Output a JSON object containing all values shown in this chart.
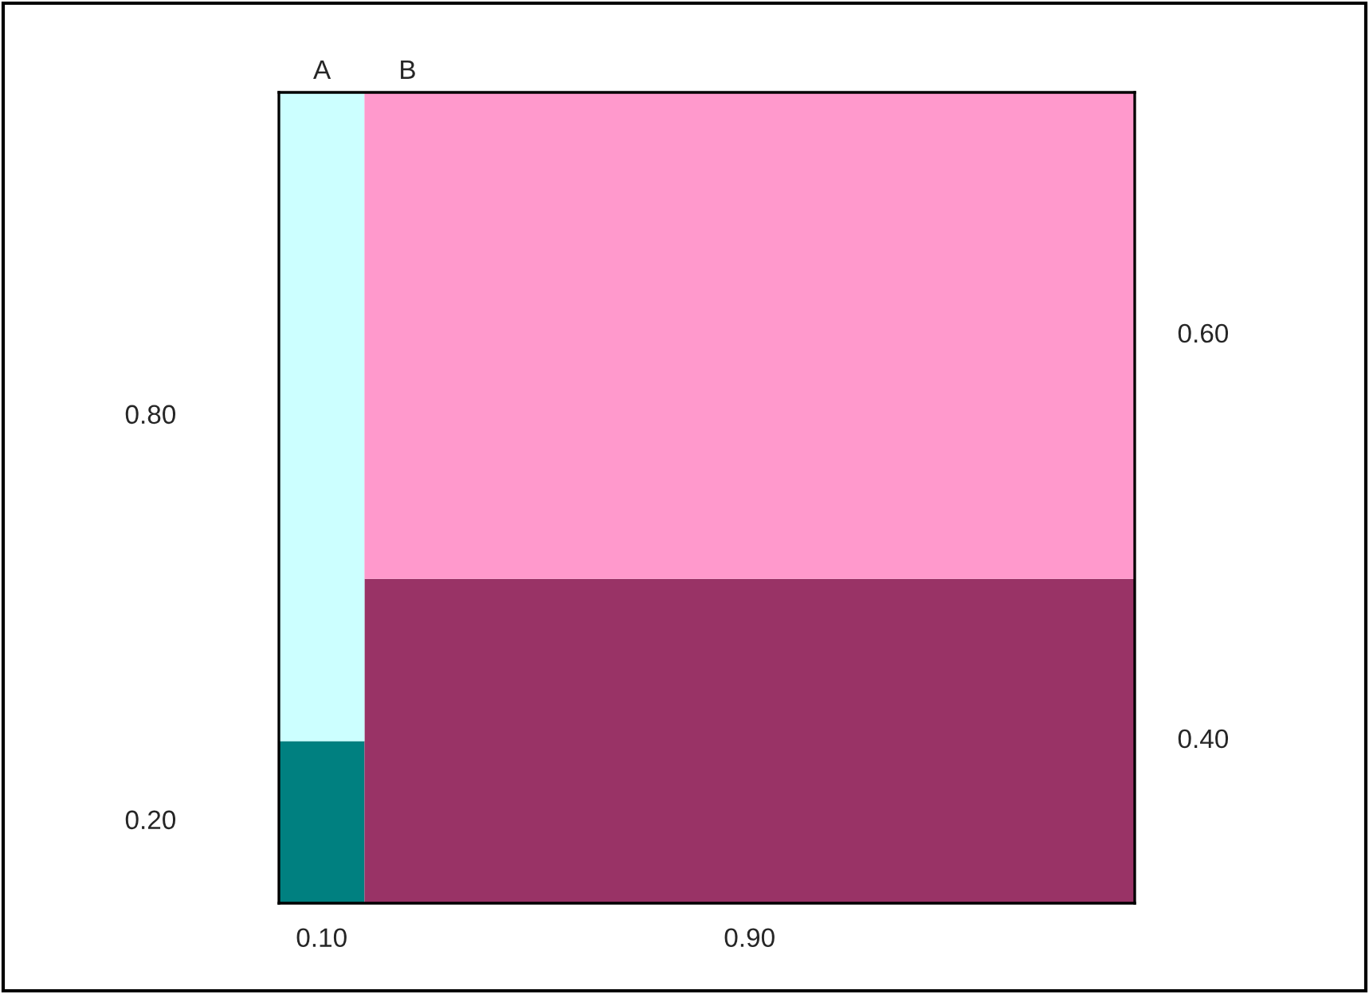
{
  "chart_data": {
    "type": "other",
    "categories": [
      "A",
      "B"
    ],
    "series": [
      {
        "colors": [
          "#008080",
          "#993366"
        ],
        "values": [
          0.2,
          0.4
        ],
        "value_labels": [
          "0.20",
          "0.40"
        ]
      },
      {
        "colors": [
          "#ccffff",
          "#ff99cc"
        ],
        "values": [
          0.8,
          0.6
        ],
        "value_labels": [
          "0.80",
          "0.60"
        ]
      }
    ],
    "annotations": [
      {
        "text": "0.10",
        "x": "A"
      },
      {
        "text": "0.90",
        "x": "B"
      }
    ]
  }
}
